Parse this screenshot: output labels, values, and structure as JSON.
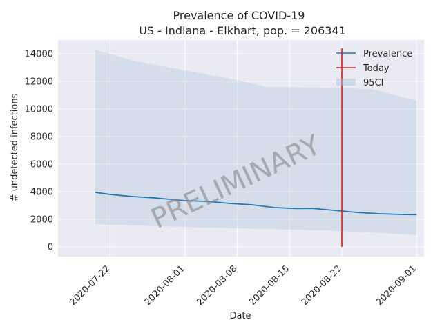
{
  "chart_data": {
    "type": "line",
    "title": "Prevalence of COVID-19",
    "subtitle": "US - Indiana - Elkhart, pop. = 206341",
    "xlabel": "Date",
    "ylabel": "# undetected infections",
    "xlim": [
      "2020-07-15",
      "2020-09-02"
    ],
    "ylim": [
      -700,
      15000
    ],
    "x_ticks": [
      "2020-07-22",
      "2020-08-01",
      "2020-08-08",
      "2020-08-15",
      "2020-08-22",
      "2020-09-01"
    ],
    "y_ticks": [
      0,
      2000,
      4000,
      6000,
      8000,
      10000,
      12000,
      14000
    ],
    "grid": true,
    "legend_position": "top-right",
    "legend": [
      "Prevalence",
      "Today",
      "95CI"
    ],
    "watermark": "PRELIMINARY",
    "today": "2020-08-22",
    "today_range": [
      0,
      14400
    ],
    "colors": {
      "prevalence": "#1f77b4",
      "today": "#d62728",
      "ci": "#b0c4de",
      "plot_bg": "#eaeaf2",
      "grid": "#ffffff"
    },
    "series": [
      {
        "name": "Prevalence",
        "x": [
          "2020-07-20",
          "2020-07-22",
          "2020-07-25",
          "2020-07-28",
          "2020-08-01",
          "2020-08-04",
          "2020-08-07",
          "2020-08-10",
          "2020-08-13",
          "2020-08-16",
          "2020-08-18",
          "2020-08-21",
          "2020-08-24",
          "2020-08-27",
          "2020-08-30",
          "2020-09-01"
        ],
        "values": [
          3950,
          3800,
          3650,
          3550,
          3350,
          3300,
          3150,
          3050,
          2850,
          2780,
          2790,
          2650,
          2500,
          2400,
          2350,
          2330
        ]
      },
      {
        "name": "95CI",
        "x": [
          "2020-07-20",
          "2020-07-25",
          "2020-08-01",
          "2020-08-08",
          "2020-08-12",
          "2020-08-19",
          "2020-08-26",
          "2020-09-01"
        ],
        "lower": [
          1650,
          1550,
          1450,
          1350,
          1300,
          1200,
          1050,
          850
        ],
        "upper": [
          14300,
          13500,
          12800,
          12100,
          11600,
          11550,
          11450,
          10600
        ]
      }
    ]
  }
}
